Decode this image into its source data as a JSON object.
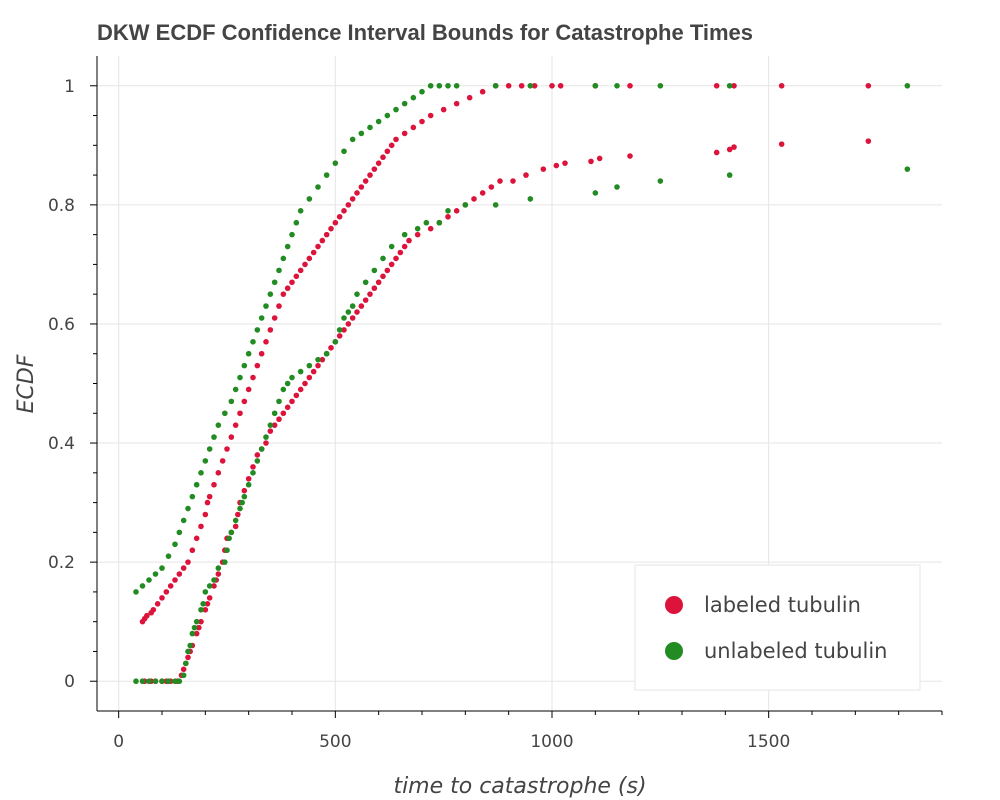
{
  "chart_data": {
    "type": "scatter",
    "title": "DKW ECDF Confidence Interval Bounds for Catastrophe Times",
    "xlabel": "time to catastrophe (s)",
    "ylabel": "ECDF",
    "xlim": [
      -50,
      1900
    ],
    "ylim": [
      -0.05,
      1.05
    ],
    "x_ticks": [
      0,
      500,
      1000,
      1500
    ],
    "x_tick_labels": [
      "0",
      "500",
      "1000",
      "1500"
    ],
    "y_ticks": [
      0,
      0.2,
      0.4,
      0.6,
      0.8,
      1
    ],
    "y_tick_labels": [
      "0",
      "0.2",
      "0.4",
      "0.6",
      "0.8",
      "1"
    ],
    "grid": true,
    "legend_position": "bottom-right",
    "series": [
      {
        "name": "labeled tubulin",
        "color": "#dc143c",
        "lower": [
          [
            60,
            0
          ],
          [
            75,
            0
          ],
          [
            85,
            0
          ],
          [
            100,
            0
          ],
          [
            110,
            0
          ],
          [
            120,
            0
          ],
          [
            135,
            0
          ],
          [
            145,
            0.01
          ],
          [
            150,
            0.02
          ],
          [
            155,
            0.03
          ],
          [
            160,
            0.04
          ],
          [
            165,
            0.05
          ],
          [
            170,
            0.06
          ],
          [
            180,
            0.08
          ],
          [
            185,
            0.09
          ],
          [
            190,
            0.1
          ],
          [
            200,
            0.12
          ],
          [
            205,
            0.13
          ],
          [
            210,
            0.14
          ],
          [
            220,
            0.16
          ],
          [
            225,
            0.17
          ],
          [
            230,
            0.18
          ],
          [
            240,
            0.2
          ],
          [
            245,
            0.22
          ],
          [
            250,
            0.24
          ],
          [
            260,
            0.25
          ],
          [
            270,
            0.26
          ],
          [
            275,
            0.28
          ],
          [
            280,
            0.3
          ],
          [
            290,
            0.32
          ],
          [
            300,
            0.34
          ],
          [
            310,
            0.36
          ],
          [
            320,
            0.38
          ],
          [
            330,
            0.39
          ],
          [
            340,
            0.4
          ],
          [
            350,
            0.42
          ],
          [
            360,
            0.43
          ],
          [
            370,
            0.44
          ],
          [
            380,
            0.45
          ],
          [
            390,
            0.46
          ],
          [
            400,
            0.47
          ],
          [
            410,
            0.48
          ],
          [
            420,
            0.49
          ],
          [
            430,
            0.5
          ],
          [
            440,
            0.51
          ],
          [
            450,
            0.52
          ],
          [
            460,
            0.53
          ],
          [
            470,
            0.54
          ],
          [
            480,
            0.55
          ],
          [
            490,
            0.56
          ],
          [
            500,
            0.57
          ],
          [
            510,
            0.58
          ],
          [
            520,
            0.59
          ],
          [
            530,
            0.6
          ],
          [
            540,
            0.61
          ],
          [
            550,
            0.62
          ],
          [
            560,
            0.63
          ],
          [
            570,
            0.64
          ],
          [
            580,
            0.65
          ],
          [
            590,
            0.66
          ],
          [
            600,
            0.67
          ],
          [
            610,
            0.68
          ],
          [
            620,
            0.69
          ],
          [
            630,
            0.7
          ],
          [
            640,
            0.71
          ],
          [
            650,
            0.72
          ],
          [
            660,
            0.73
          ],
          [
            670,
            0.74
          ],
          [
            690,
            0.75
          ],
          [
            720,
            0.76
          ],
          [
            740,
            0.77
          ],
          [
            760,
            0.78
          ],
          [
            780,
            0.79
          ],
          [
            800,
            0.8
          ],
          [
            820,
            0.81
          ],
          [
            840,
            0.82
          ],
          [
            860,
            0.83
          ],
          [
            880,
            0.84
          ],
          [
            910,
            0.84
          ],
          [
            940,
            0.85
          ],
          [
            980,
            0.86
          ],
          [
            1010,
            0.866
          ],
          [
            1030,
            0.87
          ],
          [
            1090,
            0.873
          ],
          [
            1110,
            0.878
          ],
          [
            1180,
            0.882
          ],
          [
            1380,
            0.888
          ],
          [
            1410,
            0.893
          ],
          [
            1420,
            0.897
          ],
          [
            1530,
            0.902
          ],
          [
            1730,
            0.907
          ]
        ],
        "upper": [
          [
            55,
            0.1
          ],
          [
            60,
            0.105
          ],
          [
            65,
            0.11
          ],
          [
            75,
            0.115
          ],
          [
            80,
            0.12
          ],
          [
            90,
            0.13
          ],
          [
            100,
            0.14
          ],
          [
            110,
            0.15
          ],
          [
            120,
            0.16
          ],
          [
            130,
            0.17
          ],
          [
            140,
            0.18
          ],
          [
            150,
            0.19
          ],
          [
            160,
            0.2
          ],
          [
            170,
            0.22
          ],
          [
            180,
            0.24
          ],
          [
            190,
            0.26
          ],
          [
            200,
            0.28
          ],
          [
            205,
            0.3
          ],
          [
            210,
            0.31
          ],
          [
            220,
            0.33
          ],
          [
            230,
            0.35
          ],
          [
            240,
            0.37
          ],
          [
            250,
            0.39
          ],
          [
            260,
            0.41
          ],
          [
            270,
            0.43
          ],
          [
            280,
            0.45
          ],
          [
            290,
            0.47
          ],
          [
            300,
            0.49
          ],
          [
            310,
            0.51
          ],
          [
            320,
            0.53
          ],
          [
            330,
            0.55
          ],
          [
            340,
            0.57
          ],
          [
            350,
            0.59
          ],
          [
            360,
            0.61
          ],
          [
            370,
            0.63
          ],
          [
            380,
            0.65
          ],
          [
            390,
            0.66
          ],
          [
            400,
            0.67
          ],
          [
            410,
            0.68
          ],
          [
            420,
            0.69
          ],
          [
            430,
            0.7
          ],
          [
            440,
            0.71
          ],
          [
            450,
            0.72
          ],
          [
            460,
            0.73
          ],
          [
            470,
            0.74
          ],
          [
            480,
            0.75
          ],
          [
            490,
            0.76
          ],
          [
            500,
            0.77
          ],
          [
            510,
            0.78
          ],
          [
            520,
            0.79
          ],
          [
            530,
            0.8
          ],
          [
            540,
            0.81
          ],
          [
            550,
            0.82
          ],
          [
            560,
            0.83
          ],
          [
            570,
            0.84
          ],
          [
            580,
            0.85
          ],
          [
            590,
            0.86
          ],
          [
            600,
            0.87
          ],
          [
            610,
            0.88
          ],
          [
            620,
            0.89
          ],
          [
            630,
            0.9
          ],
          [
            640,
            0.91
          ],
          [
            660,
            0.92
          ],
          [
            680,
            0.93
          ],
          [
            700,
            0.94
          ],
          [
            720,
            0.95
          ],
          [
            750,
            0.96
          ],
          [
            780,
            0.97
          ],
          [
            810,
            0.98
          ],
          [
            840,
            0.99
          ],
          [
            870,
            1
          ],
          [
            900,
            1
          ],
          [
            930,
            1
          ],
          [
            960,
            1
          ],
          [
            1000,
            1
          ],
          [
            1020,
            1
          ],
          [
            1100,
            1
          ],
          [
            1180,
            1
          ],
          [
            1380,
            1
          ],
          [
            1420,
            1
          ],
          [
            1530,
            1
          ],
          [
            1730,
            1
          ]
        ]
      },
      {
        "name": "unlabeled tubulin",
        "color": "#228b22",
        "lower": [
          [
            40,
            0
          ],
          [
            55,
            0
          ],
          [
            70,
            0
          ],
          [
            85,
            0
          ],
          [
            100,
            0
          ],
          [
            115,
            0
          ],
          [
            130,
            0
          ],
          [
            140,
            0
          ],
          [
            150,
            0.01
          ],
          [
            155,
            0.03
          ],
          [
            160,
            0.05
          ],
          [
            165,
            0.06
          ],
          [
            170,
            0.08
          ],
          [
            175,
            0.09
          ],
          [
            180,
            0.1
          ],
          [
            190,
            0.12
          ],
          [
            195,
            0.13
          ],
          [
            200,
            0.15
          ],
          [
            210,
            0.16
          ],
          [
            220,
            0.17
          ],
          [
            230,
            0.19
          ],
          [
            245,
            0.2
          ],
          [
            250,
            0.22
          ],
          [
            255,
            0.24
          ],
          [
            260,
            0.25
          ],
          [
            270,
            0.27
          ],
          [
            280,
            0.29
          ],
          [
            285,
            0.3
          ],
          [
            290,
            0.31
          ],
          [
            300,
            0.33
          ],
          [
            310,
            0.35
          ],
          [
            320,
            0.37
          ],
          [
            330,
            0.39
          ],
          [
            340,
            0.41
          ],
          [
            350,
            0.43
          ],
          [
            360,
            0.45
          ],
          [
            370,
            0.47
          ],
          [
            380,
            0.49
          ],
          [
            390,
            0.5
          ],
          [
            400,
            0.51
          ],
          [
            420,
            0.52
          ],
          [
            440,
            0.53
          ],
          [
            460,
            0.54
          ],
          [
            480,
            0.55
          ],
          [
            500,
            0.57
          ],
          [
            510,
            0.59
          ],
          [
            520,
            0.61
          ],
          [
            530,
            0.62
          ],
          [
            540,
            0.63
          ],
          [
            550,
            0.65
          ],
          [
            570,
            0.67
          ],
          [
            590,
            0.69
          ],
          [
            610,
            0.71
          ],
          [
            630,
            0.73
          ],
          [
            660,
            0.75
          ],
          [
            690,
            0.76
          ],
          [
            710,
            0.77
          ],
          [
            740,
            0.77
          ],
          [
            760,
            0.79
          ],
          [
            800,
            0.8
          ],
          [
            870,
            0.8
          ],
          [
            950,
            0.81
          ],
          [
            1100,
            0.82
          ],
          [
            1150,
            0.83
          ],
          [
            1250,
            0.84
          ],
          [
            1410,
            0.85
          ],
          [
            1820,
            0.86
          ]
        ],
        "upper": [
          [
            40,
            0.15
          ],
          [
            55,
            0.16
          ],
          [
            70,
            0.17
          ],
          [
            85,
            0.18
          ],
          [
            100,
            0.19
          ],
          [
            115,
            0.21
          ],
          [
            130,
            0.23
          ],
          [
            140,
            0.25
          ],
          [
            150,
            0.27
          ],
          [
            160,
            0.29
          ],
          [
            170,
            0.31
          ],
          [
            180,
            0.33
          ],
          [
            190,
            0.35
          ],
          [
            200,
            0.37
          ],
          [
            210,
            0.39
          ],
          [
            220,
            0.41
          ],
          [
            230,
            0.43
          ],
          [
            245,
            0.45
          ],
          [
            260,
            0.47
          ],
          [
            270,
            0.49
          ],
          [
            280,
            0.51
          ],
          [
            290,
            0.53
          ],
          [
            300,
            0.55
          ],
          [
            310,
            0.57
          ],
          [
            320,
            0.59
          ],
          [
            330,
            0.61
          ],
          [
            340,
            0.63
          ],
          [
            350,
            0.65
          ],
          [
            360,
            0.67
          ],
          [
            370,
            0.69
          ],
          [
            380,
            0.71
          ],
          [
            390,
            0.73
          ],
          [
            400,
            0.75
          ],
          [
            410,
            0.77
          ],
          [
            420,
            0.79
          ],
          [
            440,
            0.81
          ],
          [
            460,
            0.83
          ],
          [
            480,
            0.85
          ],
          [
            500,
            0.87
          ],
          [
            520,
            0.89
          ],
          [
            540,
            0.91
          ],
          [
            560,
            0.92
          ],
          [
            580,
            0.93
          ],
          [
            600,
            0.94
          ],
          [
            620,
            0.95
          ],
          [
            640,
            0.96
          ],
          [
            660,
            0.97
          ],
          [
            680,
            0.98
          ],
          [
            700,
            0.99
          ],
          [
            720,
            1
          ],
          [
            740,
            1
          ],
          [
            760,
            1
          ],
          [
            780,
            1
          ],
          [
            870,
            1
          ],
          [
            950,
            1
          ],
          [
            1100,
            1
          ],
          [
            1150,
            1
          ],
          [
            1250,
            1
          ],
          [
            1410,
            1
          ],
          [
            1820,
            1
          ]
        ]
      }
    ]
  }
}
